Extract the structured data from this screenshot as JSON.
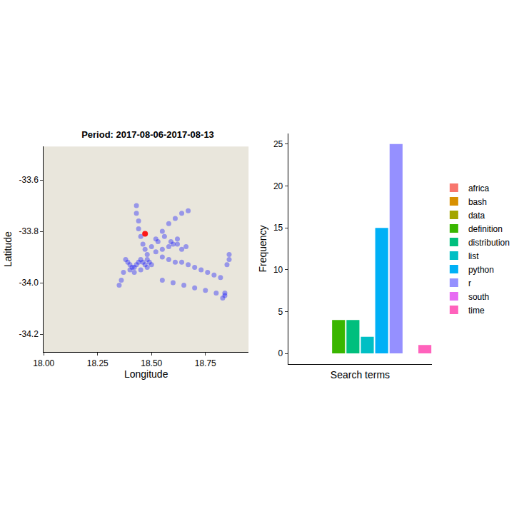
{
  "chart_data": [
    {
      "type": "scatter",
      "title": "Period: 2017-08-06-2017-08-13",
      "xlabel": "Longitude",
      "ylabel": "Latitude",
      "xlim": [
        18.0,
        18.95
      ],
      "xticks": [
        {
          "value": 18.0,
          "label": "18.00"
        },
        18.25,
        {
          "value": 18.5,
          "label": "18.50"
        },
        18.75
      ],
      "ylim": [
        -34.27,
        -33.47
      ],
      "yticks": [
        {
          "value": -34.2,
          "label": "-34.2"
        },
        {
          "value": -34.0,
          "label": "-34.0"
        },
        {
          "value": -33.8,
          "label": "-33.8"
        },
        {
          "value": -33.6,
          "label": "-33.6"
        }
      ],
      "grid": false,
      "series": [
        {
          "color": "#0000ff",
          "marker": "circle",
          "x": [
            18.43,
            18.43,
            18.44,
            18.44,
            18.45,
            18.46,
            18.47,
            18.48,
            18.48,
            18.49,
            18.47,
            18.46,
            18.45,
            18.44,
            18.43,
            18.42,
            18.41,
            18.4,
            18.39,
            18.38,
            18.37,
            18.36,
            18.35,
            18.4,
            18.42,
            18.45,
            18.48,
            18.5,
            18.52,
            18.55,
            18.58,
            18.6,
            18.62,
            18.64,
            18.66,
            18.55,
            18.58,
            18.61,
            18.64,
            18.67,
            18.7,
            18.73,
            18.76,
            18.79,
            18.82,
            18.85,
            18.86,
            18.86,
            18.84,
            18.83,
            18.52,
            18.55,
            18.58,
            18.61,
            18.64,
            18.67,
            18.55,
            18.6,
            18.65,
            18.7,
            18.75,
            18.8,
            18.84,
            18.5,
            18.53,
            18.56,
            18.59,
            18.62
          ],
          "values": [
            -33.7,
            -33.73,
            -33.76,
            -33.79,
            -33.82,
            -33.85,
            -33.87,
            -33.89,
            -33.91,
            -33.92,
            -33.93,
            -33.92,
            -33.91,
            -33.92,
            -33.93,
            -33.94,
            -33.94,
            -33.93,
            -33.92,
            -33.91,
            -33.96,
            -33.99,
            -34.01,
            -33.95,
            -33.96,
            -33.95,
            -33.94,
            -33.93,
            -33.88,
            -33.87,
            -33.86,
            -33.85,
            -33.85,
            -33.87,
            -33.86,
            -33.9,
            -33.91,
            -33.92,
            -33.92,
            -33.93,
            -33.94,
            -33.95,
            -33.96,
            -33.97,
            -33.98,
            -33.93,
            -33.91,
            -33.89,
            -34.04,
            -34.06,
            -33.83,
            -33.8,
            -33.77,
            -33.75,
            -33.73,
            -33.72,
            -33.99,
            -34.0,
            -34.01,
            -34.02,
            -34.03,
            -34.04,
            -34.05,
            -33.86,
            -33.84,
            -33.82,
            -33.84,
            -33.83
          ]
        },
        {
          "color": "#ff0000",
          "marker": "circle",
          "x": [
            18.47
          ],
          "values": [
            -33.81
          ]
        }
      ]
    },
    {
      "type": "bar",
      "xlabel": "Search terms",
      "ylabel": "Frequency",
      "categories": [
        "africa",
        "bash",
        "data",
        "definition",
        "distribution",
        "list",
        "python",
        "r",
        "south",
        "time"
      ],
      "values": [
        0,
        0,
        0,
        4,
        4,
        2,
        15,
        25,
        0,
        1
      ],
      "colors": [
        "#F8766D",
        "#D89000",
        "#A3A500",
        "#39B600",
        "#00BF7D",
        "#00BFC4",
        "#00B0F6",
        "#9590FF",
        "#E76BF3",
        "#FF62BC"
      ],
      "ylim": [
        -1.25,
        26.25
      ],
      "yticks": [
        0,
        5,
        10,
        15,
        20,
        25
      ],
      "tick_labels": "y",
      "legend": "right",
      "grid": false
    }
  ]
}
